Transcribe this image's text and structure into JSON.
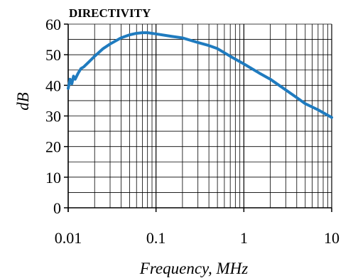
{
  "chart_data": {
    "type": "line",
    "title": "DIRECTIVITY",
    "xlabel": "Frequency, MHz",
    "ylabel": "dB",
    "x_scale": "log",
    "xlim": [
      0.01,
      10
    ],
    "ylim": [
      0,
      60
    ],
    "x_ticks": [
      {
        "value": 0.01,
        "label": "0.01"
      },
      {
        "value": 0.1,
        "label": "0.1"
      },
      {
        "value": 1,
        "label": "1"
      },
      {
        "value": 10,
        "label": "10"
      }
    ],
    "y_ticks": [
      {
        "value": 0,
        "label": "0"
      },
      {
        "value": 10,
        "label": "10"
      },
      {
        "value": 20,
        "label": "20"
      },
      {
        "value": 30,
        "label": "30"
      },
      {
        "value": 40,
        "label": "40"
      },
      {
        "value": 50,
        "label": "50"
      },
      {
        "value": 60,
        "label": "60"
      }
    ],
    "grid": true,
    "series": [
      {
        "color": "#1f7bbf",
        "x": [
          0.01,
          0.0105,
          0.011,
          0.0115,
          0.012,
          0.013,
          0.014,
          0.015,
          0.017,
          0.02,
          0.025,
          0.03,
          0.04,
          0.05,
          0.06,
          0.07,
          0.08,
          0.1,
          0.15,
          0.2,
          0.3,
          0.4,
          0.5,
          0.7,
          1,
          1.5,
          2,
          3,
          4,
          5,
          7,
          10
        ],
        "y": [
          39,
          42,
          40.5,
          43,
          42,
          44,
          45.5,
          46,
          47.5,
          49.5,
          52,
          53.5,
          55.5,
          56.5,
          57,
          57.2,
          57.2,
          56.8,
          56,
          55.5,
          54,
          53,
          52,
          49.5,
          47,
          44,
          42,
          38.5,
          36,
          34,
          32,
          29.5
        ]
      }
    ]
  }
}
